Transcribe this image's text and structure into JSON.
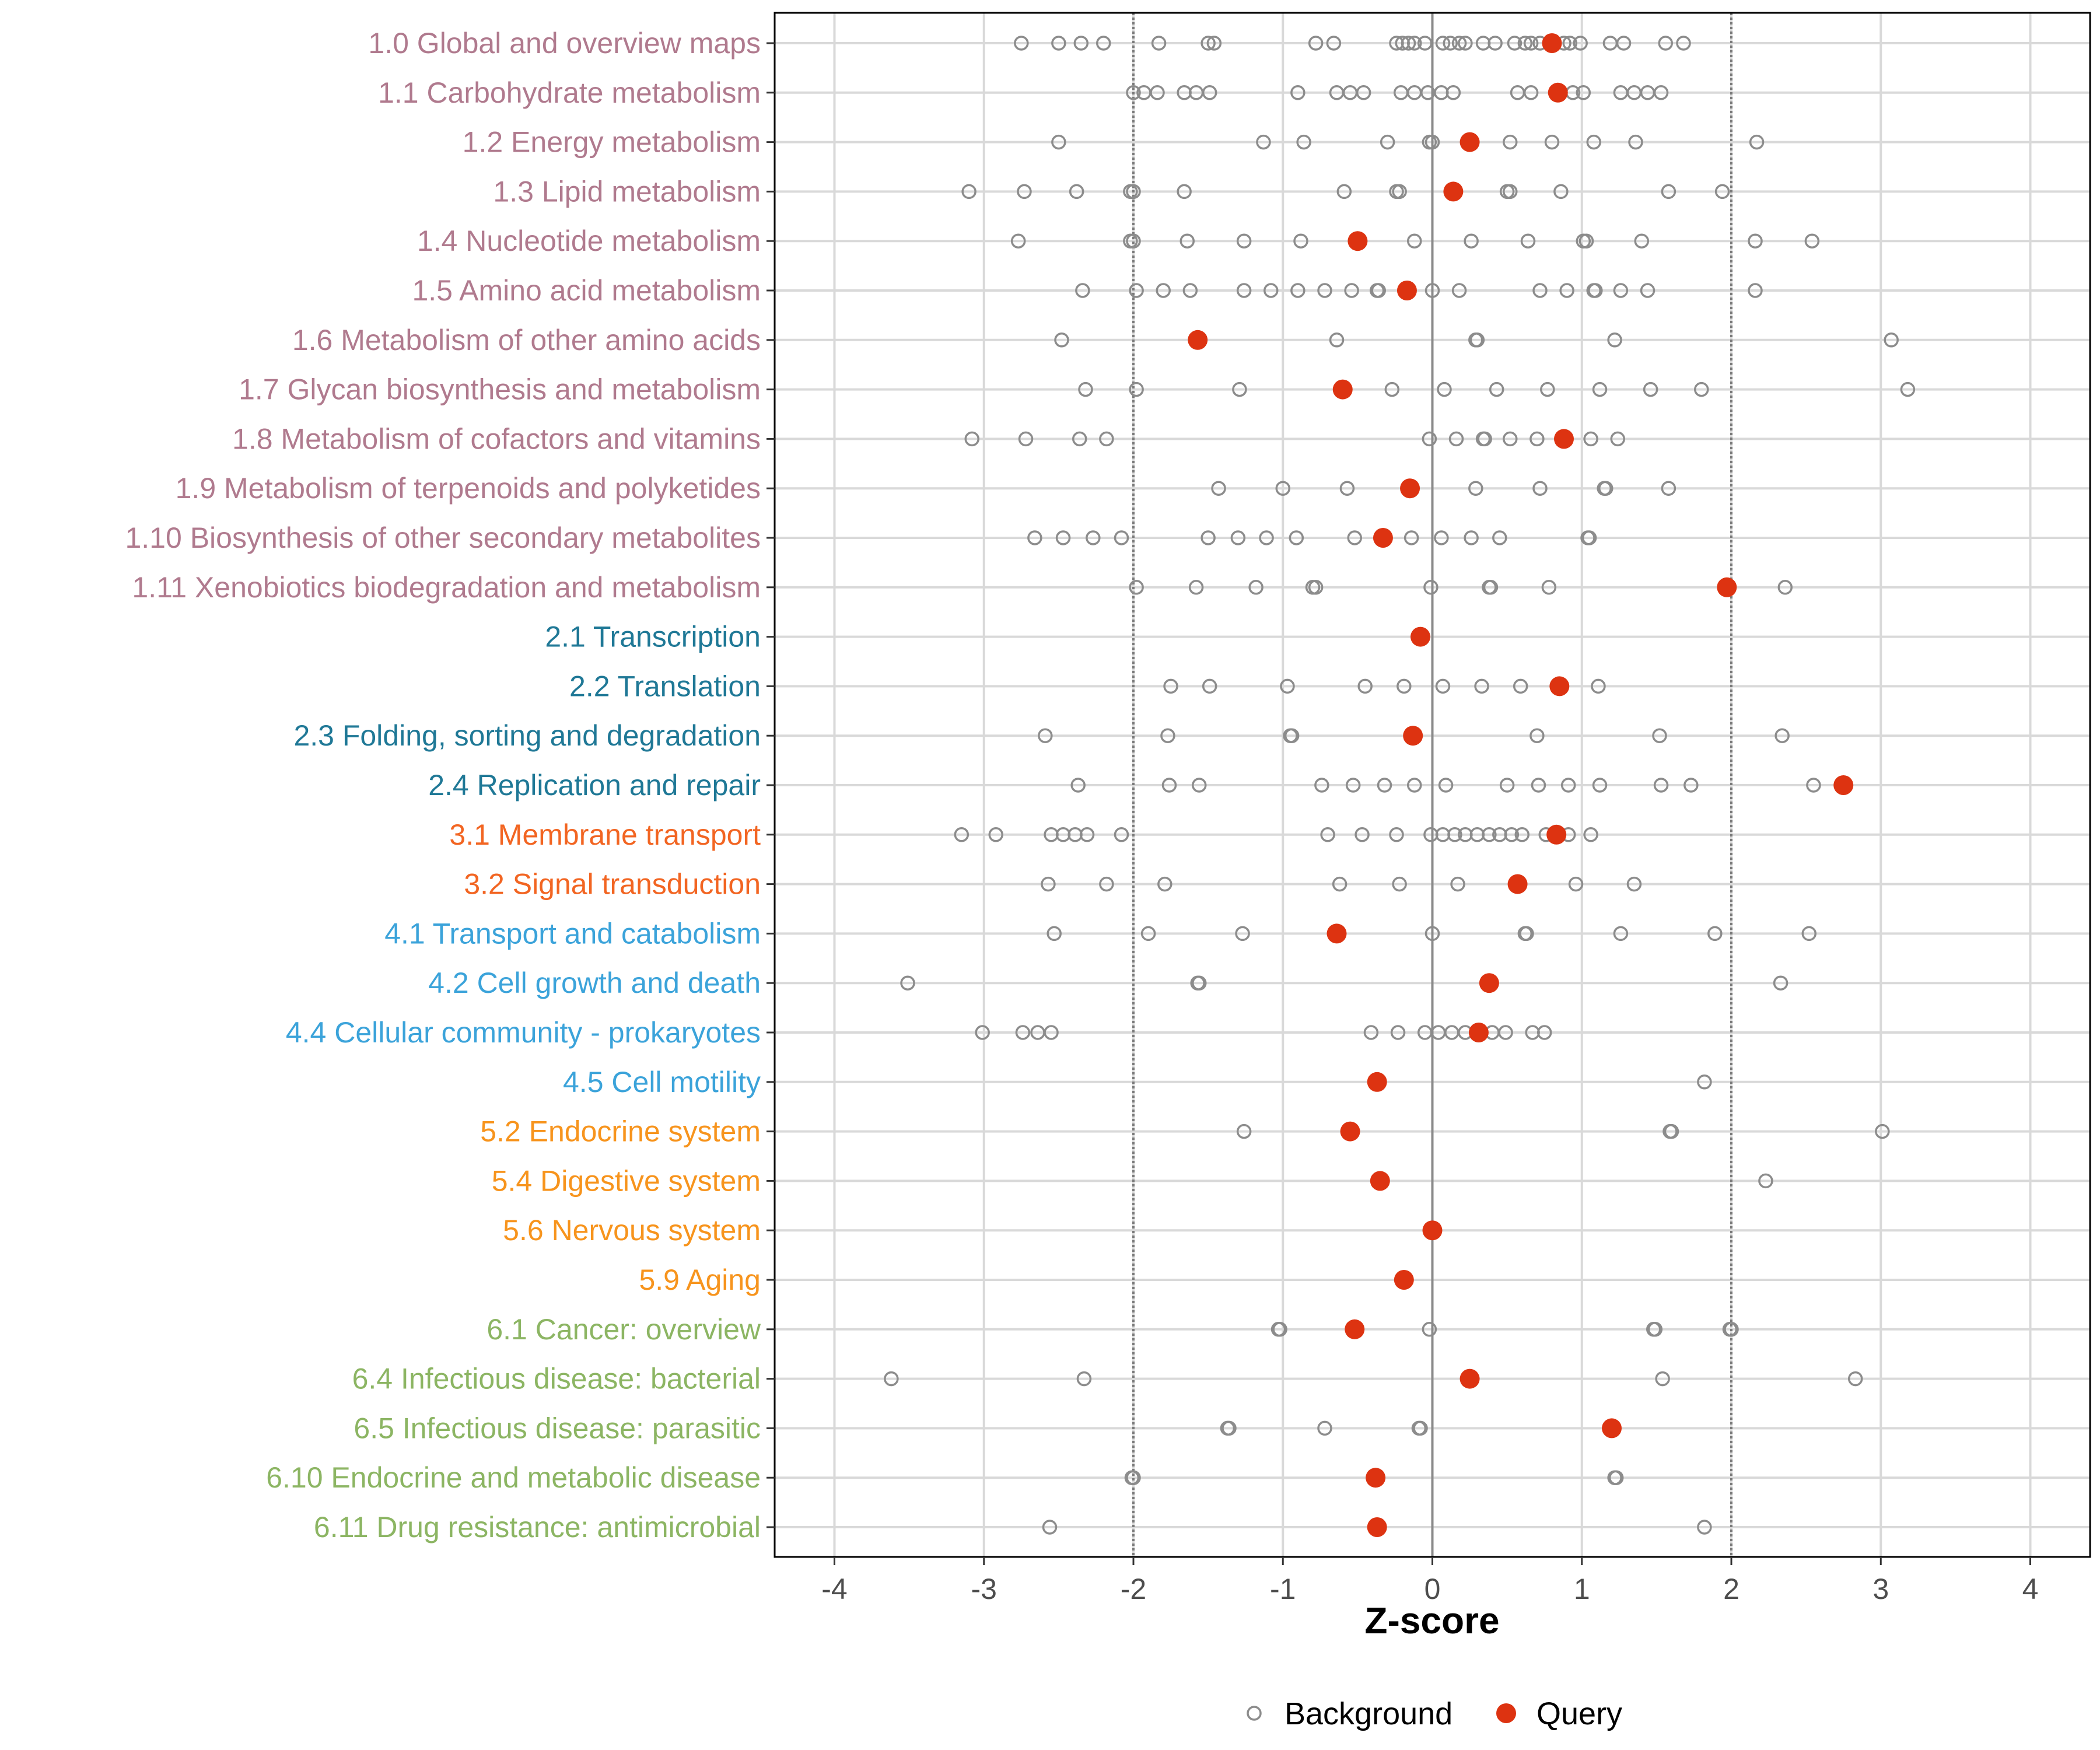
{
  "chart_data": {
    "type": "scatter",
    "xlabel": "Z-score",
    "xlim": [
      -4.4,
      4.4
    ],
    "x_ticks": [
      -4,
      -3,
      -2,
      -1,
      0,
      1,
      2,
      3,
      4
    ],
    "x_tick_labels": [
      "-4",
      "-3",
      "-2",
      "-1",
      "0",
      "1",
      "2",
      "3",
      "4"
    ],
    "reference_lines": {
      "dotted": [
        -2,
        2
      ],
      "solid": [
        0
      ]
    },
    "grid": true,
    "legend": {
      "position": "bottom",
      "entries": [
        {
          "name": "Background",
          "marker": "open-circle",
          "color": "#8c8c8c"
        },
        {
          "name": "Query",
          "marker": "filled-circle",
          "color": "#dd3311"
        }
      ]
    },
    "group_colors": {
      "1": "#b07a8e",
      "2": "#1f7896",
      "3": "#f26522",
      "4": "#3ba3da",
      "5": "#f7941d",
      "6": "#8cb563"
    },
    "categories": [
      {
        "label": "1.0 Global and overview maps",
        "group": "1",
        "query": 0.8,
        "background": [
          -2.75,
          -2.5,
          -2.35,
          -2.2,
          -1.83,
          -1.5,
          -1.46,
          -0.78,
          -0.66,
          -0.24,
          -0.2,
          -0.16,
          -0.12,
          -0.05,
          0.07,
          0.12,
          0.18,
          0.22,
          0.34,
          0.42,
          0.55,
          0.62,
          0.66,
          0.72,
          0.88,
          0.92,
          0.99,
          1.19,
          1.28,
          1.56,
          1.68
        ]
      },
      {
        "label": "1.1 Carbohydrate metabolism",
        "group": "1",
        "query": 0.84,
        "background": [
          -2.0,
          -1.93,
          -1.84,
          -1.66,
          -1.58,
          -1.49,
          -0.9,
          -0.64,
          -0.55,
          -0.46,
          -0.21,
          -0.12,
          -0.03,
          0.06,
          0.14,
          0.57,
          0.66,
          0.94,
          1.01,
          1.26,
          1.35,
          1.44,
          1.53
        ]
      },
      {
        "label": "1.2 Energy metabolism",
        "group": "1",
        "query": 0.25,
        "background": [
          -2.5,
          -1.13,
          -0.86,
          -0.3,
          -0.02,
          0.0,
          0.52,
          0.8,
          1.08,
          1.36,
          2.17
        ]
      },
      {
        "label": "1.3 Lipid metabolism",
        "group": "1",
        "query": 0.14,
        "background": [
          -3.1,
          -2.73,
          -2.38,
          -2.02,
          -2.0,
          -1.66,
          -0.59,
          -0.24,
          -0.22,
          0.5,
          0.52,
          0.86,
          1.58,
          1.94
        ]
      },
      {
        "label": "1.4 Nucleotide metabolism",
        "group": "1",
        "query": -0.5,
        "background": [
          -2.77,
          -2.02,
          -2.0,
          -1.64,
          -1.26,
          -0.88,
          -0.12,
          0.26,
          0.64,
          1.01,
          1.03,
          1.4,
          2.16,
          2.54
        ]
      },
      {
        "label": "1.5 Amino acid metabolism",
        "group": "1",
        "query": -0.17,
        "background": [
          -2.34,
          -1.98,
          -1.8,
          -1.62,
          -1.26,
          -1.08,
          -0.9,
          -0.72,
          -0.54,
          -0.37,
          -0.36,
          0.0,
          0.18,
          0.72,
          0.9,
          1.08,
          1.09,
          1.26,
          1.44,
          2.16
        ]
      },
      {
        "label": "1.6 Metabolism of other amino acids",
        "group": "1",
        "query": -1.57,
        "background": [
          -2.48,
          -0.64,
          0.29,
          0.3,
          1.22,
          3.07
        ]
      },
      {
        "label": "1.7 Glycan biosynthesis and metabolism",
        "group": "1",
        "query": -0.6,
        "background": [
          -2.32,
          -1.98,
          -1.29,
          -0.27,
          0.08,
          0.43,
          0.77,
          1.12,
          1.46,
          1.8,
          3.18
        ]
      },
      {
        "label": "1.8 Metabolism of cofactors and vitamins",
        "group": "1",
        "query": 0.88,
        "background": [
          -3.08,
          -2.72,
          -2.36,
          -2.18,
          -0.02,
          0.16,
          0.34,
          0.35,
          0.52,
          0.7,
          1.06,
          1.24
        ]
      },
      {
        "label": "1.9 Metabolism of terpenoids and polyketides",
        "group": "1",
        "query": -0.15,
        "background": [
          -1.43,
          -1.0,
          -0.57,
          0.29,
          0.72,
          1.15,
          1.16,
          1.58
        ]
      },
      {
        "label": "1.10 Biosynthesis of other secondary metabolites",
        "group": "1",
        "query": -0.33,
        "background": [
          -2.66,
          -2.47,
          -2.27,
          -2.08,
          -1.5,
          -1.3,
          -1.11,
          -0.91,
          -0.52,
          -0.14,
          0.06,
          0.26,
          0.45,
          1.04,
          1.05
        ]
      },
      {
        "label": "1.11 Xenobiotics biodegradation and metabolism",
        "group": "1",
        "query": 1.97,
        "background": [
          -1.98,
          -1.58,
          -1.18,
          -0.8,
          -0.78,
          -0.01,
          0.38,
          0.39,
          0.78,
          2.36
        ]
      },
      {
        "label": "2.1 Transcription",
        "group": "2",
        "query": -0.08,
        "background": []
      },
      {
        "label": "2.2 Translation",
        "group": "2",
        "query": 0.85,
        "background": [
          -1.75,
          -1.49,
          -0.97,
          -0.45,
          -0.19,
          0.07,
          0.33,
          0.59,
          1.11
        ]
      },
      {
        "label": "2.3 Folding, sorting and degradation",
        "group": "2",
        "query": -0.13,
        "background": [
          -2.59,
          -1.77,
          -0.95,
          -0.94,
          0.7,
          1.52,
          2.34
        ]
      },
      {
        "label": "2.4 Replication and repair",
        "group": "2",
        "query": 2.75,
        "background": [
          -2.37,
          -1.76,
          -1.56,
          -0.74,
          -0.53,
          -0.32,
          -0.12,
          0.09,
          0.5,
          0.71,
          0.91,
          1.12,
          1.53,
          1.73,
          2.55
        ]
      },
      {
        "label": "3.1 Membrane transport",
        "group": "3",
        "query": 0.83,
        "background": [
          -3.15,
          -2.92,
          -2.55,
          -2.47,
          -2.39,
          -2.31,
          -2.08,
          -0.7,
          -0.47,
          -0.24,
          -0.01,
          0.07,
          0.15,
          0.22,
          0.3,
          0.38,
          0.45,
          0.53,
          0.6,
          0.76,
          0.91,
          1.06
        ]
      },
      {
        "label": "3.2 Signal transduction",
        "group": "3",
        "query": 0.57,
        "background": [
          -2.57,
          -2.18,
          -1.79,
          -0.62,
          -0.22,
          0.17,
          0.96,
          1.35
        ]
      },
      {
        "label": "4.1 Transport and catabolism",
        "group": "4",
        "query": -0.64,
        "background": [
          -2.53,
          -1.9,
          -1.27,
          0.0,
          0.62,
          0.63,
          1.26,
          1.89,
          2.52
        ]
      },
      {
        "label": "4.2 Cell growth and death",
        "group": "4",
        "query": 0.38,
        "background": [
          -3.51,
          -1.56,
          -1.57,
          2.33
        ]
      },
      {
        "label": "4.4 Cellular community - prokaryotes",
        "group": "4",
        "query": 0.31,
        "background": [
          -3.01,
          -2.74,
          -2.64,
          -2.55,
          -0.41,
          -0.23,
          -0.05,
          0.04,
          0.13,
          0.22,
          0.4,
          0.49,
          0.67,
          0.75
        ]
      },
      {
        "label": "4.5 Cell motility",
        "group": "4",
        "query": -0.37,
        "background": [
          1.82
        ]
      },
      {
        "label": "5.2 Endocrine system",
        "group": "5",
        "query": -0.55,
        "background": [
          -1.26,
          1.59,
          1.6,
          3.01
        ]
      },
      {
        "label": "5.4 Digestive system",
        "group": "5",
        "query": -0.35,
        "background": [
          2.23
        ]
      },
      {
        "label": "5.6 Nervous system",
        "group": "5",
        "query": 0.0,
        "background": []
      },
      {
        "label": "5.9 Aging",
        "group": "5",
        "query": -0.19,
        "background": []
      },
      {
        "label": "6.1 Cancer: overview",
        "group": "6",
        "query": -0.52,
        "background": [
          -1.02,
          -1.03,
          -0.02,
          1.48,
          1.49,
          1.99,
          2.0
        ]
      },
      {
        "label": "6.4 Infectious disease: bacterial",
        "group": "6",
        "query": 0.25,
        "background": [
          -3.62,
          -2.33,
          1.54,
          2.83
        ]
      },
      {
        "label": "6.5 Infectious disease: parasitic",
        "group": "6",
        "query": 1.2,
        "background": [
          -1.36,
          -1.37,
          -0.72,
          -0.08,
          -0.09
        ]
      },
      {
        "label": "6.10 Endocrine and metabolic disease",
        "group": "6",
        "query": -0.38,
        "background": [
          -2.0,
          -2.01,
          1.22,
          1.23
        ]
      },
      {
        "label": "6.11 Drug resistance: antimicrobial",
        "group": "6",
        "query": -0.37,
        "background": [
          -2.56,
          1.82
        ]
      }
    ]
  }
}
